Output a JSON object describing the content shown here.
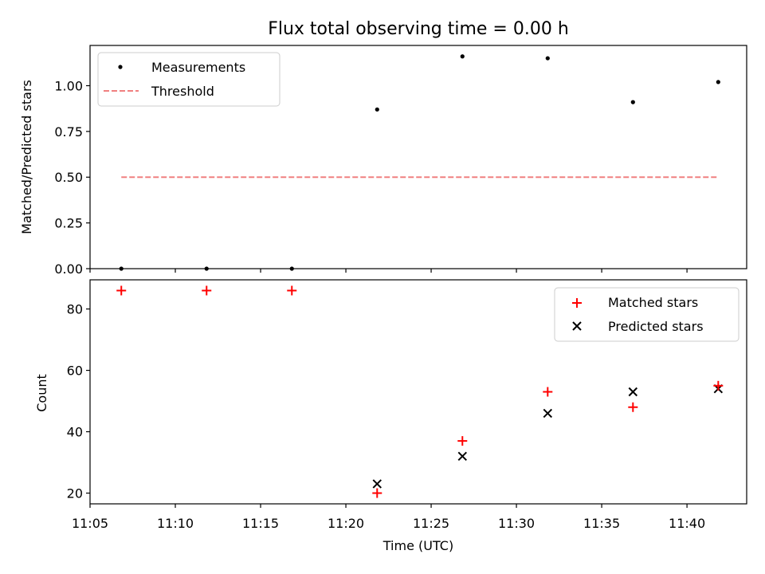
{
  "chart_data": [
    {
      "type": "scatter",
      "title": "Flux total observing time = 0.00 h",
      "xlabel": "",
      "ylabel": "Matched/Predicted stars",
      "x_unit": "time (UTC)",
      "xlim": [
        "11:05",
        "11:43:30"
      ],
      "ylim": [
        0,
        1.22
      ],
      "yticks": [
        "0.00",
        "0.25",
        "0.50",
        "0.75",
        "1.00"
      ],
      "ytick_values": [
        0,
        0.25,
        0.5,
        0.75,
        1.0
      ],
      "grid": false,
      "legend_position": "top-left",
      "series": [
        {
          "name": "Measurements",
          "marker": "dot",
          "color": "#000000",
          "points": [
            {
              "x": "11:06:50",
              "y": 0.0
            },
            {
              "x": "11:11:50",
              "y": 0.0
            },
            {
              "x": "11:16:50",
              "y": 0.0
            },
            {
              "x": "11:21:50",
              "y": 0.87
            },
            {
              "x": "11:26:50",
              "y": 1.16
            },
            {
              "x": "11:31:50",
              "y": 1.15
            },
            {
              "x": "11:36:50",
              "y": 0.91
            },
            {
              "x": "11:41:50",
              "y": 1.02
            }
          ]
        },
        {
          "name": "Threshold",
          "style": "dashed-line",
          "color": "#f08080",
          "points": [
            {
              "x": "11:06:50",
              "y": 0.5
            },
            {
              "x": "11:41:50",
              "y": 0.5
            }
          ]
        }
      ]
    },
    {
      "type": "scatter",
      "title": "",
      "xlabel": "Time (UTC)",
      "ylabel": "Count",
      "x_unit": "time (UTC)",
      "xlim": [
        "11:05",
        "11:43:30"
      ],
      "ylim": [
        16.5,
        89.5
      ],
      "xticks": [
        "11:05",
        "11:10",
        "11:15",
        "11:20",
        "11:25",
        "11:30",
        "11:35",
        "11:40"
      ],
      "yticks": [
        "20",
        "40",
        "60",
        "80"
      ],
      "ytick_values": [
        20,
        40,
        60,
        80
      ],
      "grid": false,
      "legend_position": "top-right",
      "series": [
        {
          "name": "Matched stars",
          "marker": "plus",
          "color": "#ff0000",
          "points": [
            {
              "x": "11:06:50",
              "y": 86
            },
            {
              "x": "11:11:50",
              "y": 86
            },
            {
              "x": "11:16:50",
              "y": 86
            },
            {
              "x": "11:21:50",
              "y": 20
            },
            {
              "x": "11:26:50",
              "y": 37
            },
            {
              "x": "11:31:50",
              "y": 53
            },
            {
              "x": "11:36:50",
              "y": 48
            },
            {
              "x": "11:41:50",
              "y": 55
            }
          ]
        },
        {
          "name": "Predicted stars",
          "marker": "x",
          "color": "#000000",
          "points": [
            {
              "x": "11:21:50",
              "y": 23
            },
            {
              "x": "11:26:50",
              "y": 32
            },
            {
              "x": "11:31:50",
              "y": 46
            },
            {
              "x": "11:36:50",
              "y": 53
            },
            {
              "x": "11:41:50",
              "y": 54
            }
          ]
        }
      ]
    }
  ]
}
